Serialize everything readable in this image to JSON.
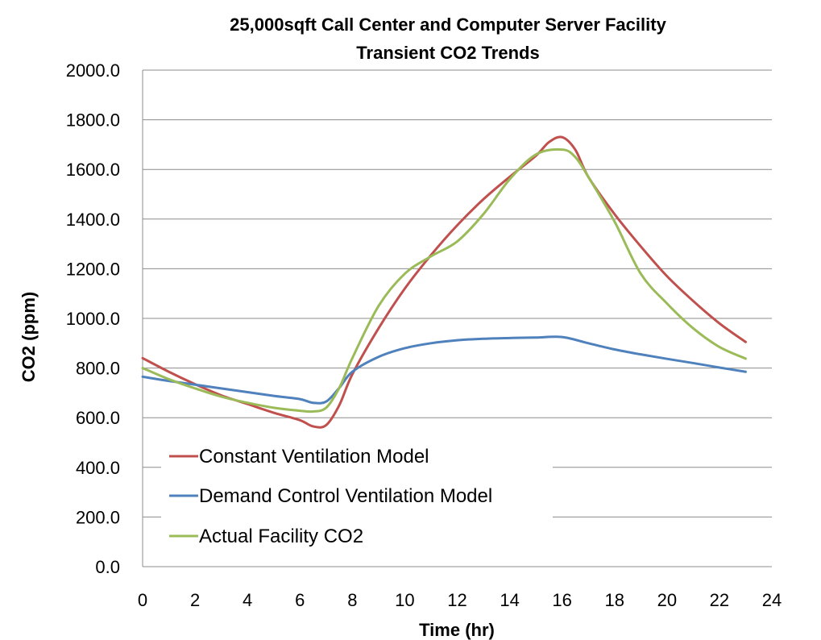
{
  "chart_data": {
    "type": "line",
    "title_line1": "25,000sqft Call Center and Computer Server Facility",
    "title_line2": "Transient CO2 Trends",
    "xlabel": "Time (hr)",
    "ylabel": "CO2 (ppm)",
    "xlim": [
      0,
      24
    ],
    "ylim": [
      0,
      2000
    ],
    "x_ticks": [
      "0",
      "2",
      "4",
      "6",
      "8",
      "10",
      "12",
      "14",
      "16",
      "18",
      "20",
      "22",
      "24"
    ],
    "y_ticks": [
      "0.0",
      "200.0",
      "400.0",
      "600.0",
      "800.0",
      "1000.0",
      "1200.0",
      "1400.0",
      "1600.0",
      "1800.0",
      "2000.0"
    ],
    "grid": "horizontal",
    "legend_position": "bottom-left",
    "series": [
      {
        "name": "Constant Ventilation Model",
        "color": "#c0504d",
        "points": [
          [
            0,
            840
          ],
          [
            1,
            785
          ],
          [
            2,
            735
          ],
          [
            3,
            690
          ],
          [
            4,
            655
          ],
          [
            5,
            620
          ],
          [
            6,
            590
          ],
          [
            6.5,
            565
          ],
          [
            7,
            570
          ],
          [
            7.5,
            650
          ],
          [
            8,
            775
          ],
          [
            9,
            960
          ],
          [
            10,
            1120
          ],
          [
            11,
            1255
          ],
          [
            12,
            1375
          ],
          [
            13,
            1480
          ],
          [
            14,
            1570
          ],
          [
            15,
            1655
          ],
          [
            15.5,
            1710
          ],
          [
            16,
            1730
          ],
          [
            16.5,
            1680
          ],
          [
            17,
            1570
          ],
          [
            18,
            1420
          ],
          [
            19,
            1290
          ],
          [
            20,
            1170
          ],
          [
            21,
            1070
          ],
          [
            22,
            980
          ],
          [
            23,
            905
          ]
        ]
      },
      {
        "name": "Demand Control Ventilation Model",
        "color": "#4f81bd",
        "points": [
          [
            0,
            765
          ],
          [
            1,
            748
          ],
          [
            2,
            733
          ],
          [
            3,
            718
          ],
          [
            4,
            703
          ],
          [
            5,
            688
          ],
          [
            6,
            675
          ],
          [
            6.5,
            660
          ],
          [
            7,
            665
          ],
          [
            7.5,
            720
          ],
          [
            8,
            785
          ],
          [
            9,
            845
          ],
          [
            10,
            880
          ],
          [
            11,
            900
          ],
          [
            12,
            912
          ],
          [
            13,
            918
          ],
          [
            14,
            921
          ],
          [
            15,
            923
          ],
          [
            16,
            925
          ],
          [
            17,
            900
          ],
          [
            18,
            875
          ],
          [
            19,
            855
          ],
          [
            20,
            837
          ],
          [
            21,
            820
          ],
          [
            22,
            802
          ],
          [
            23,
            785
          ]
        ]
      },
      {
        "name": "Actual Facility CO2",
        "color": "#9bbb59",
        "points": [
          [
            0,
            800
          ],
          [
            1,
            755
          ],
          [
            2,
            718
          ],
          [
            3,
            685
          ],
          [
            4,
            660
          ],
          [
            5,
            640
          ],
          [
            6,
            628
          ],
          [
            6.5,
            625
          ],
          [
            7,
            640
          ],
          [
            7.5,
            720
          ],
          [
            8,
            840
          ],
          [
            9,
            1050
          ],
          [
            10,
            1180
          ],
          [
            11,
            1250
          ],
          [
            12,
            1310
          ],
          [
            13,
            1420
          ],
          [
            14,
            1560
          ],
          [
            15,
            1660
          ],
          [
            16,
            1680
          ],
          [
            16.5,
            1650
          ],
          [
            17,
            1570
          ],
          [
            18,
            1390
          ],
          [
            19,
            1180
          ],
          [
            20,
            1060
          ],
          [
            21,
            960
          ],
          [
            22,
            885
          ],
          [
            23,
            838
          ]
        ]
      }
    ]
  }
}
